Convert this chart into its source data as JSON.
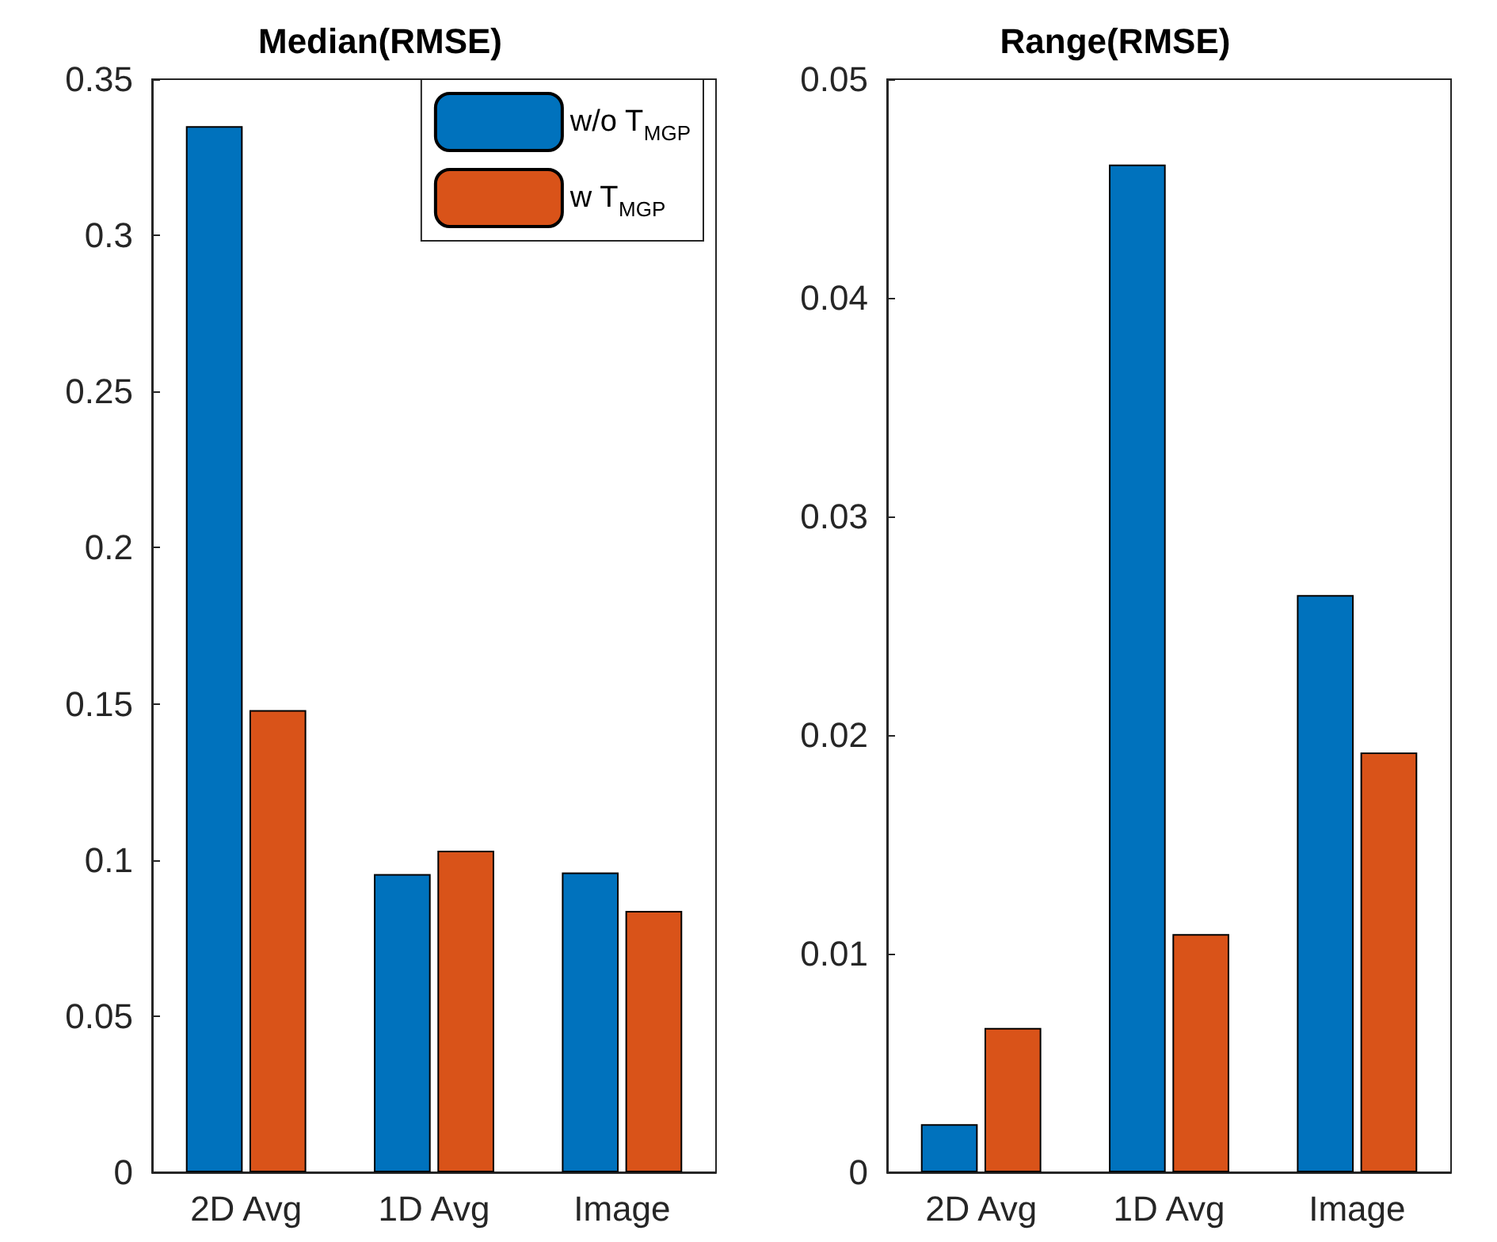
{
  "chart_data": [
    {
      "type": "bar",
      "title": "Median(RMSE)",
      "categories": [
        "2D Avg",
        "1D Avg",
        "Image"
      ],
      "series": [
        {
          "name": "w/o T$_{MGP}$",
          "color": "#0072bd",
          "values": [
            0.335,
            0.0955,
            0.096
          ]
        },
        {
          "name": "w T$_{MGP}$",
          "color": "#d95319",
          "values": [
            0.148,
            0.103,
            0.0837
          ]
        }
      ],
      "ylim": [
        0,
        0.35
      ],
      "yticks": [
        0,
        0.05,
        0.1,
        0.15,
        0.2,
        0.25,
        0.3,
        0.35
      ],
      "grid": false,
      "legend": "top right"
    },
    {
      "type": "bar",
      "title": "Range(RMSE)",
      "categories": [
        "2D Avg",
        "1D Avg",
        "Image"
      ],
      "series": [
        {
          "color": "#0072bd",
          "values": [
            0.0022,
            0.0461,
            0.0264
          ]
        },
        {
          "color": "#d95319",
          "values": [
            0.0066,
            0.0109,
            0.0192
          ]
        }
      ],
      "ylim": [
        0,
        0.05
      ],
      "yticks": [
        0,
        0.01,
        0.02,
        0.03,
        0.04,
        0.05
      ],
      "grid": false
    }
  ]
}
